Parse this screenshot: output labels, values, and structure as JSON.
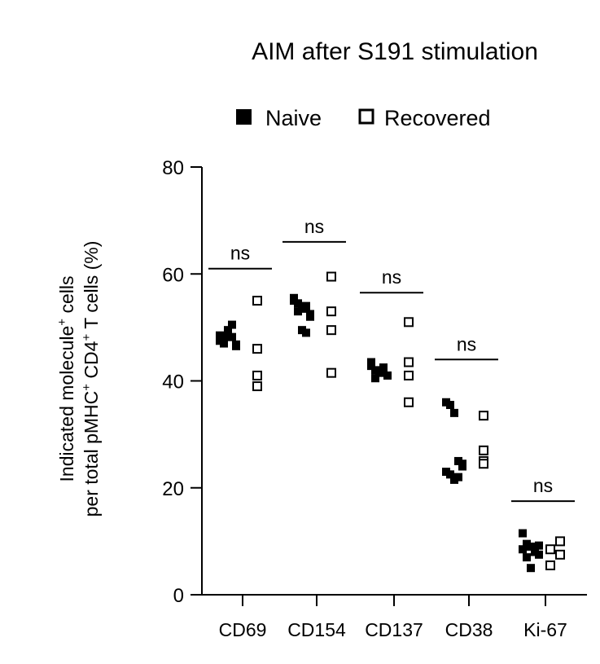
{
  "chart_data": {
    "type": "scatter",
    "title": "AIM after S191 stimulation",
    "ylabel_line1": "Indicated molecule",
    "ylabel_sup1": "+",
    "ylabel_line1_end": " cells",
    "ylabel_line2_a": "per total pMHC",
    "ylabel_sup2a": "+",
    "ylabel_line2_b": " CD4",
    "ylabel_sup2b": "+",
    "ylabel_line2_c": " T cells (%)",
    "ylim": [
      0,
      80
    ],
    "yticks": [
      0,
      20,
      40,
      60,
      80
    ],
    "categories": [
      "CD69",
      "CD154",
      "CD137",
      "CD38",
      "Ki-67"
    ],
    "significance": [
      "ns",
      "ns",
      "ns",
      "ns",
      "ns"
    ],
    "legend_placement": "top-center",
    "series": [
      {
        "name": "Naive",
        "marker": "filled-square",
        "color": "#000000",
        "values": [
          [
            47.5,
            48.0,
            49.0,
            50.5,
            46.5,
            48.5,
            47.0,
            49.5,
            48.2,
            46.8
          ],
          [
            55.5,
            54.5,
            53.5,
            54.0,
            52.5,
            55.0,
            53.0,
            49.5,
            49.0,
            52.0
          ],
          [
            43.5,
            42.0,
            41.5,
            42.5,
            41.0,
            42.8,
            40.5,
            41.8
          ],
          [
            36.0,
            35.5,
            34.0,
            25.0,
            24.0,
            23.0,
            22.5,
            21.5,
            22.0,
            24.5
          ],
          [
            11.5,
            9.5,
            9.0,
            8.0,
            7.5,
            8.5,
            7.0,
            5.0,
            8.2,
            9.2
          ]
        ]
      },
      {
        "name": "Recovered",
        "marker": "open-square",
        "color": "#000000",
        "values": [
          [
            55.0,
            46.0,
            41.0,
            39.0
          ],
          [
            59.5,
            53.0,
            49.5,
            41.5
          ],
          [
            51.0,
            43.5,
            41.0,
            36.0
          ],
          [
            33.5,
            27.0,
            25.0,
            24.5
          ],
          [
            10.0,
            8.5,
            7.5,
            5.5
          ]
        ]
      }
    ],
    "significance_bar_y": [
      61,
      66,
      56.5,
      44,
      17.5
    ]
  }
}
